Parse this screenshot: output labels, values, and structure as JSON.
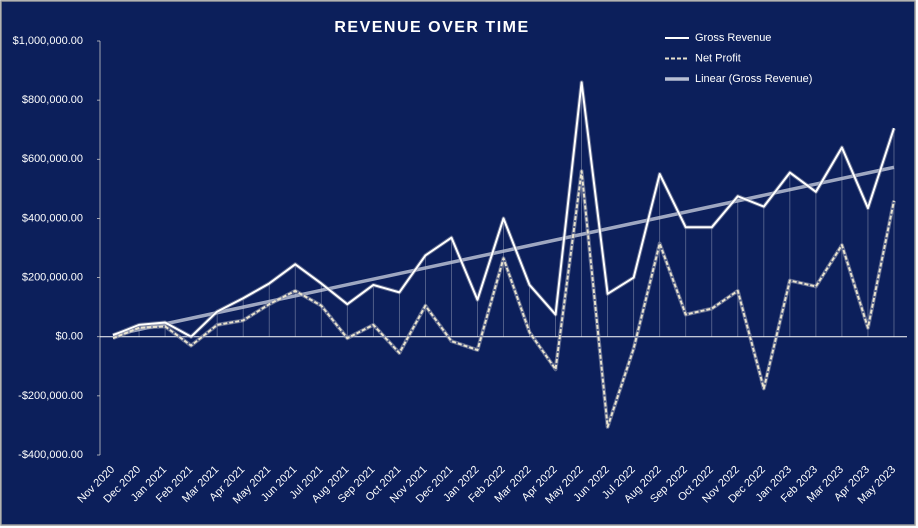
{
  "chart_data": {
    "type": "line",
    "title": "REVENUE OVER TIME",
    "categories": [
      "Nov 2020",
      "Dec 2020",
      "Jan 2021",
      "Feb 2021",
      "Mar 2021",
      "Apr 2021",
      "May 2021",
      "Jun 2021",
      "Jul 2021",
      "Aug 2021",
      "Sep 2021",
      "Oct 2021",
      "Nov 2021",
      "Dec 2021",
      "Jan 2022",
      "Feb 2022",
      "Mar 2022",
      "Apr 2022",
      "May 2022",
      "Jun 2022",
      "Jul 2022",
      "Aug 2022",
      "Sep 2022",
      "Oct 2022",
      "Nov 2022",
      "Dec 2022",
      "Jan 2023",
      "Feb 2023",
      "Mar 2023",
      "Apr 2023",
      "May 2023"
    ],
    "series": [
      {
        "name": "Gross Revenue",
        "color": "#ffffff",
        "dashed": false,
        "values": [
          5000,
          40000,
          48000,
          0,
          85000,
          130000,
          180000,
          245000,
          180000,
          110000,
          175000,
          150000,
          275000,
          335000,
          125000,
          400000,
          175000,
          75000,
          860000,
          145000,
          200000,
          550000,
          370000,
          370000,
          475000,
          440000,
          555000,
          490000,
          640000,
          435000,
          705000
        ]
      },
      {
        "name": "Net Profit",
        "color": "#e8e2cf",
        "dashed": true,
        "values": [
          -5000,
          30000,
          35000,
          -30000,
          40000,
          55000,
          110000,
          155000,
          105000,
          -5000,
          40000,
          -55000,
          105000,
          -15000,
          -45000,
          265000,
          15000,
          -110000,
          560000,
          -305000,
          -40000,
          315000,
          75000,
          95000,
          155000,
          -175000,
          190000,
          170000,
          310000,
          30000,
          460000
        ]
      }
    ],
    "trendline": {
      "name": "Linear (Gross Revenue)",
      "kind": "linear",
      "series": 0,
      "color": "#b8bfd4"
    },
    "ylim": [
      -400000,
      1000000
    ],
    "yticks": [
      {
        "value": -400000,
        "label": "-$400,000.00"
      },
      {
        "value": -200000,
        "label": "-$200,000.00"
      },
      {
        "value": 0,
        "label": "$0.00"
      },
      {
        "value": 200000,
        "label": "$200,000.00"
      },
      {
        "value": 400000,
        "label": "$400,000.00"
      },
      {
        "value": 600000,
        "label": "$600,000.00"
      },
      {
        "value": 800000,
        "label": "$800,000.00"
      },
      {
        "value": 1000000,
        "label": "$1,000,000.00"
      }
    ],
    "drop_lines": true,
    "background": "#0c1f5b"
  }
}
